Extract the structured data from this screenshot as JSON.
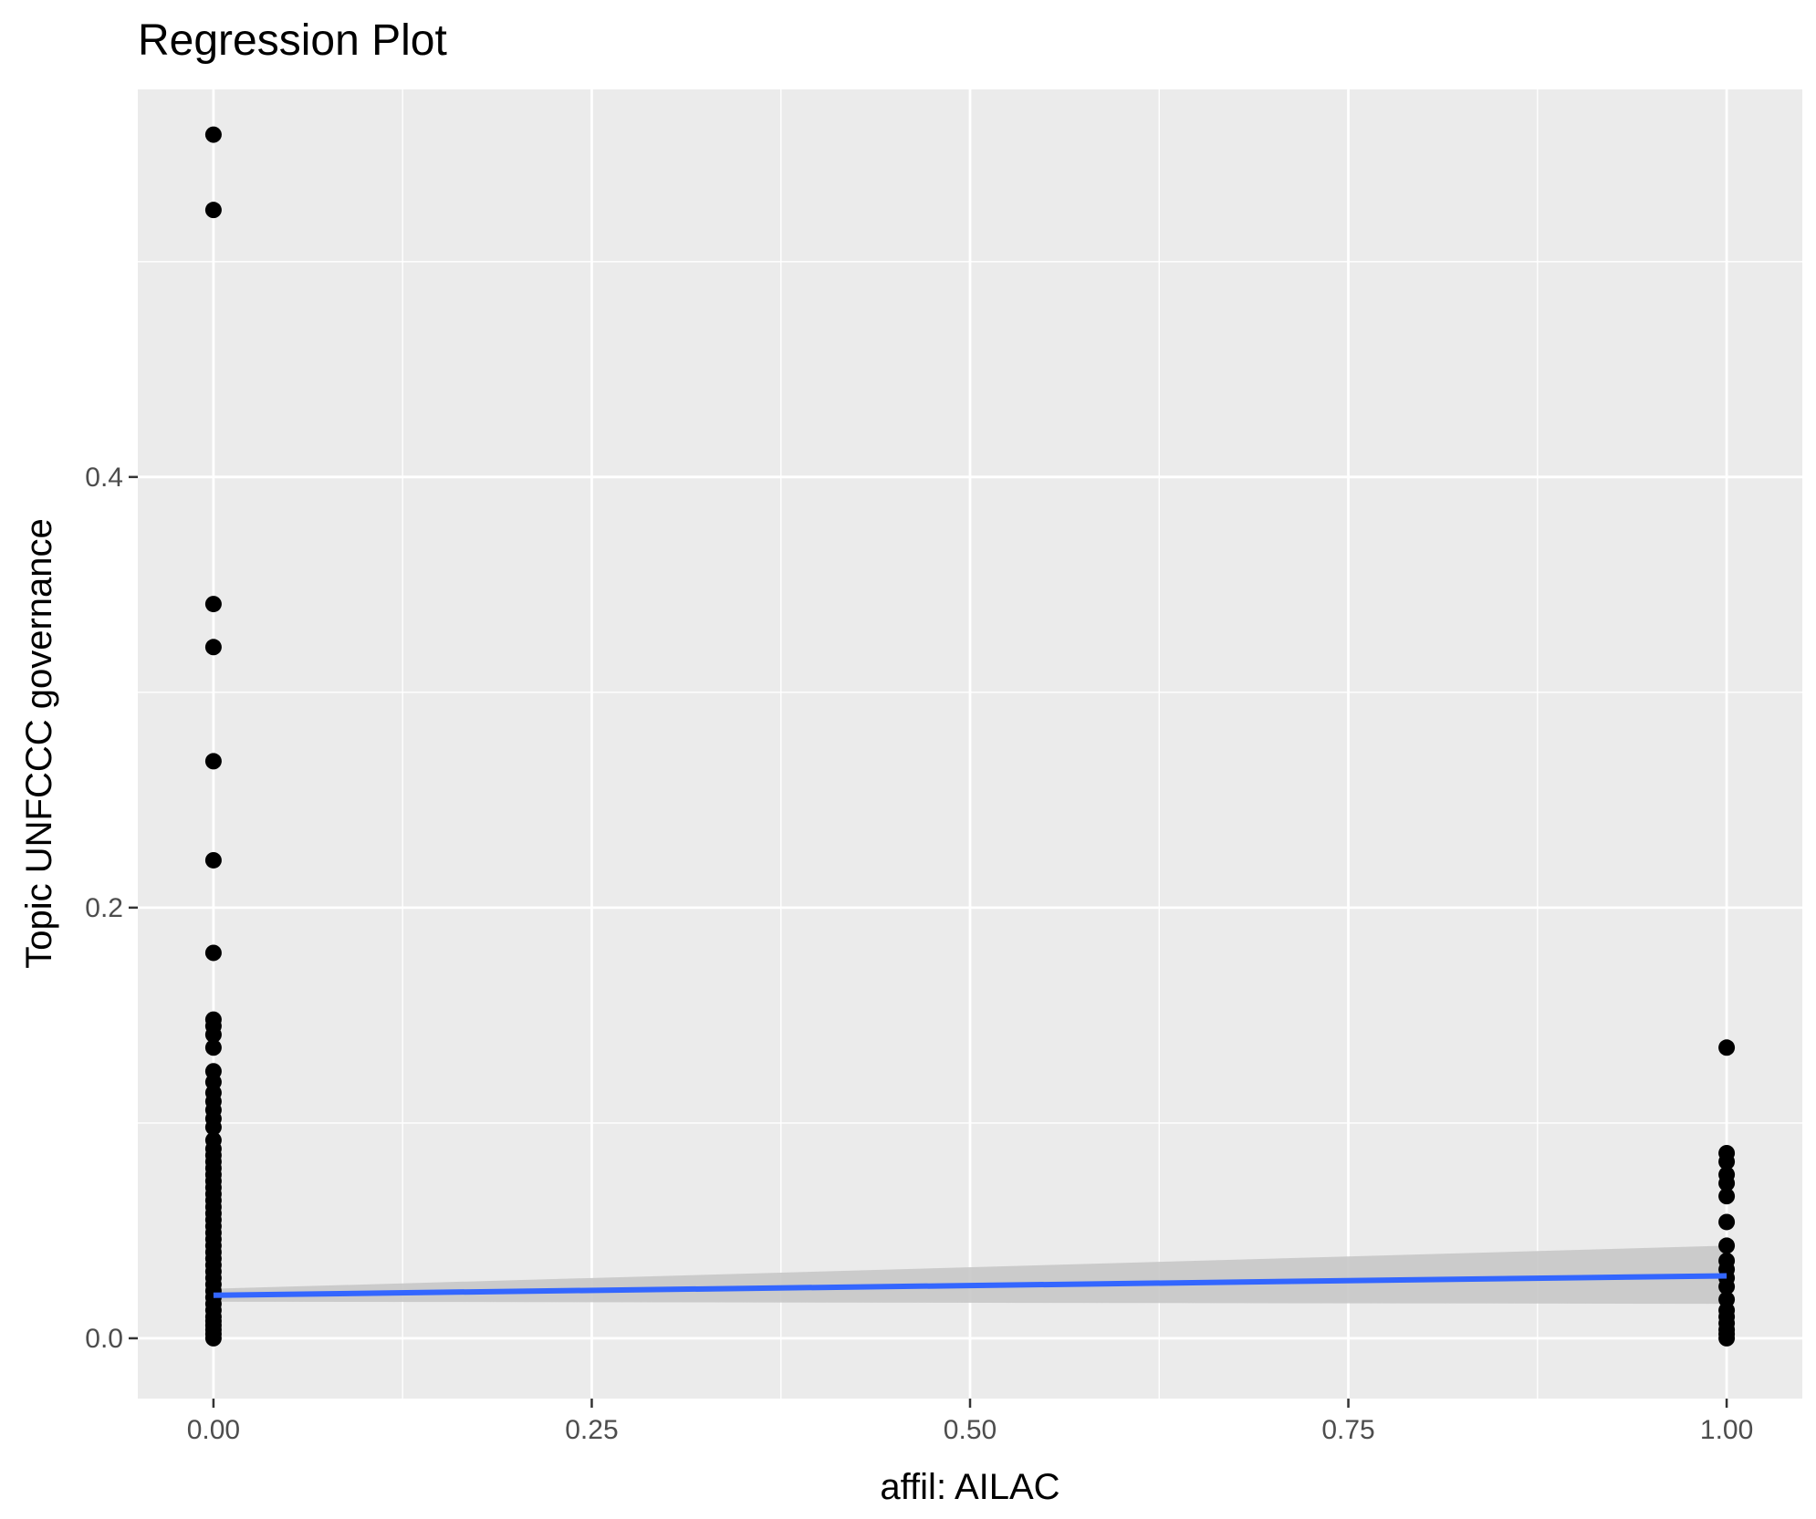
{
  "chart_data": {
    "type": "scatter",
    "title": "Regression Plot",
    "xlabel": "affil: AILAC",
    "ylabel": "Topic UNFCCC governance",
    "xlim": [
      -0.05,
      1.05
    ],
    "ylim": [
      -0.028,
      0.58
    ],
    "x_ticks": [
      0.0,
      0.25,
      0.5,
      0.75,
      1.0
    ],
    "x_tick_labels": [
      "0.00",
      "0.25",
      "0.50",
      "0.75",
      "1.00"
    ],
    "y_ticks": [
      0.0,
      0.2,
      0.4
    ],
    "y_tick_labels": [
      "0.0",
      "0.2",
      "0.4"
    ],
    "grid": true,
    "colors": {
      "panel": "#ebebeb",
      "grid": "#ffffff",
      "points": "#000000",
      "line": "#3366ff",
      "band": "#c8c8c8"
    },
    "series": [
      {
        "values": [
          [
            0,
            0.559
          ],
          [
            0,
            0.524
          ],
          [
            0,
            0.341
          ],
          [
            0,
            0.321
          ],
          [
            0,
            0.268
          ],
          [
            0,
            0.222
          ],
          [
            0,
            0.179
          ],
          [
            0,
            0.148
          ],
          [
            0,
            0.145
          ],
          [
            0,
            0.141
          ],
          [
            0,
            0.135
          ],
          [
            0,
            0.124
          ],
          [
            0,
            0.119
          ],
          [
            0,
            0.114
          ],
          [
            0,
            0.11
          ],
          [
            0,
            0.106
          ],
          [
            0,
            0.102
          ],
          [
            0,
            0.098
          ],
          [
            0,
            0.092
          ],
          [
            0,
            0.088
          ],
          [
            0,
            0.085
          ],
          [
            0,
            0.082
          ],
          [
            0,
            0.079
          ],
          [
            0,
            0.076
          ],
          [
            0,
            0.073
          ],
          [
            0,
            0.07
          ],
          [
            0,
            0.067
          ],
          [
            0,
            0.064
          ],
          [
            0,
            0.061
          ],
          [
            0,
            0.058
          ],
          [
            0,
            0.055
          ],
          [
            0,
            0.052
          ],
          [
            0,
            0.049
          ],
          [
            0,
            0.046
          ],
          [
            0,
            0.043
          ],
          [
            0,
            0.04
          ],
          [
            0,
            0.037
          ],
          [
            0,
            0.034
          ],
          [
            0,
            0.031
          ],
          [
            0,
            0.028
          ],
          [
            0,
            0.025
          ],
          [
            0,
            0.022
          ],
          [
            0,
            0.019
          ],
          [
            0,
            0.016
          ],
          [
            0,
            0.013
          ],
          [
            0,
            0.01
          ],
          [
            0,
            0.008
          ],
          [
            0,
            0.006
          ],
          [
            0,
            0.004
          ],
          [
            0,
            0.002
          ],
          [
            0,
            0.0
          ],
          [
            1,
            0.135
          ],
          [
            1,
            0.086
          ],
          [
            1,
            0.082
          ],
          [
            1,
            0.076
          ],
          [
            1,
            0.072
          ],
          [
            1,
            0.066
          ],
          [
            1,
            0.054
          ],
          [
            1,
            0.043
          ],
          [
            1,
            0.036
          ],
          [
            1,
            0.032
          ],
          [
            1,
            0.028
          ],
          [
            1,
            0.024
          ],
          [
            1,
            0.018
          ],
          [
            1,
            0.013
          ],
          [
            1,
            0.01
          ],
          [
            1,
            0.007
          ],
          [
            1,
            0.004
          ],
          [
            1,
            0.002
          ],
          [
            1,
            0.0
          ]
        ]
      }
    ],
    "regression": {
      "x": [
        0,
        1
      ],
      "y": [
        0.02,
        0.029
      ],
      "ci_lower": [
        0.017,
        0.016
      ],
      "ci_upper": [
        0.023,
        0.043
      ]
    }
  }
}
